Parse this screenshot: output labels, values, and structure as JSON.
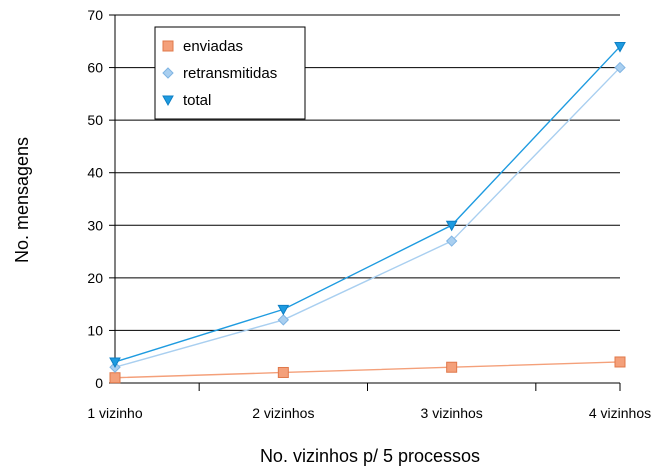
{
  "chart_data": {
    "type": "line",
    "title": "",
    "xlabel": "No. vizinhos p/ 5 processos",
    "ylabel": "No. mensagens",
    "categories": [
      "1 vizinho",
      "2 vizinhos",
      "3 vizinhos",
      "4 vizinhos"
    ],
    "ylim": [
      0,
      70
    ],
    "yticks": [
      0,
      10,
      20,
      30,
      40,
      50,
      60,
      70
    ],
    "grid": "horizontal",
    "legend_position": "top-left",
    "series": [
      {
        "name": "enviadas",
        "values": [
          1,
          2,
          3,
          4
        ],
        "color": "#F4A07A",
        "stroke": "#E0784A",
        "marker": "square"
      },
      {
        "name": "retransmitidas",
        "values": [
          3,
          12,
          27,
          60
        ],
        "color": "#A9CFF0",
        "stroke": "#7FB4E3",
        "marker": "diamond"
      },
      {
        "name": "total",
        "values": [
          4,
          14,
          30,
          64
        ],
        "color": "#1E9BE0",
        "stroke": "#0E7FC4",
        "marker": "triangle-down"
      }
    ]
  }
}
